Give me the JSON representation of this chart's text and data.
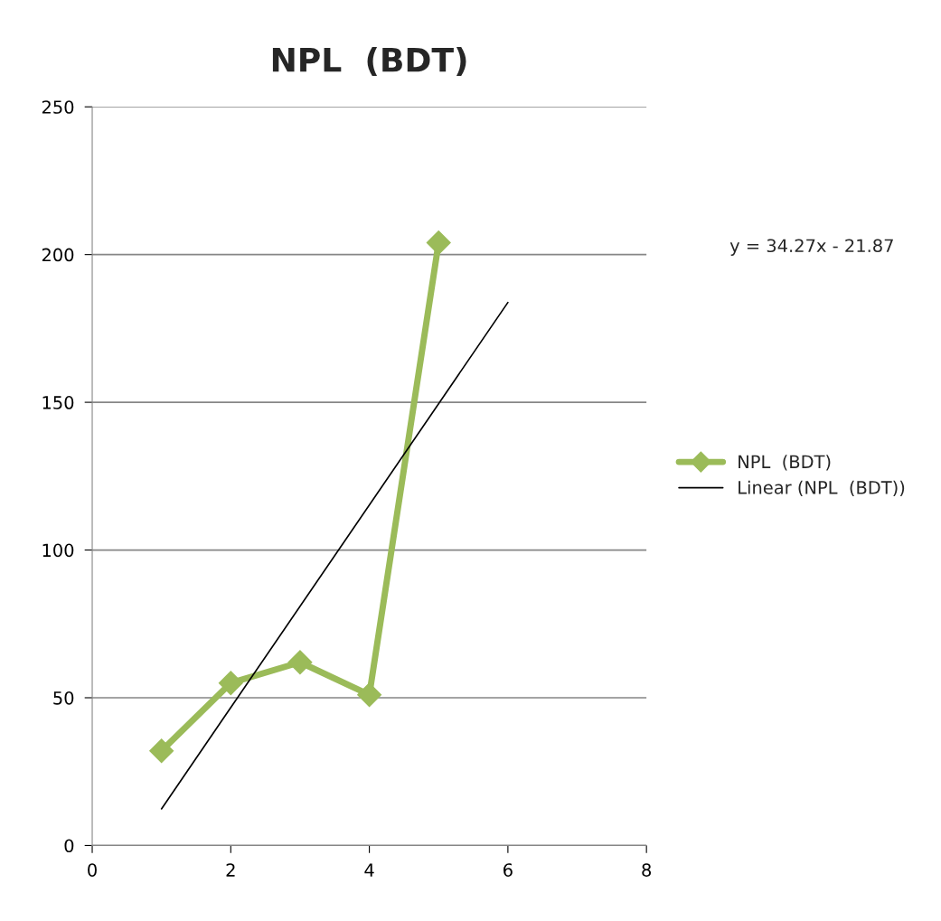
{
  "chart_data": {
    "type": "line",
    "title": "NPL  (BDT)",
    "x": [
      1,
      2,
      3,
      4,
      5
    ],
    "series": [
      {
        "name": "NPL  (BDT)",
        "color": "#9bbb59",
        "values": [
          32,
          55,
          62,
          51,
          204
        ],
        "marker": "diamond"
      },
      {
        "name": "Linear (NPL  (BDT))",
        "color": "#000000",
        "type": "line",
        "x": [
          1,
          6
        ],
        "values": [
          12.4,
          183.8
        ],
        "marker": "none"
      }
    ],
    "annotations": [
      "y = 34.27x - 21.87"
    ],
    "xlim": [
      0,
      8
    ],
    "xticks": [
      0,
      2,
      4,
      6,
      8
    ],
    "ylim": [
      0,
      250
    ],
    "yticks": [
      0,
      50,
      100,
      150,
      200,
      250
    ],
    "grid": "y",
    "legend": "right"
  }
}
